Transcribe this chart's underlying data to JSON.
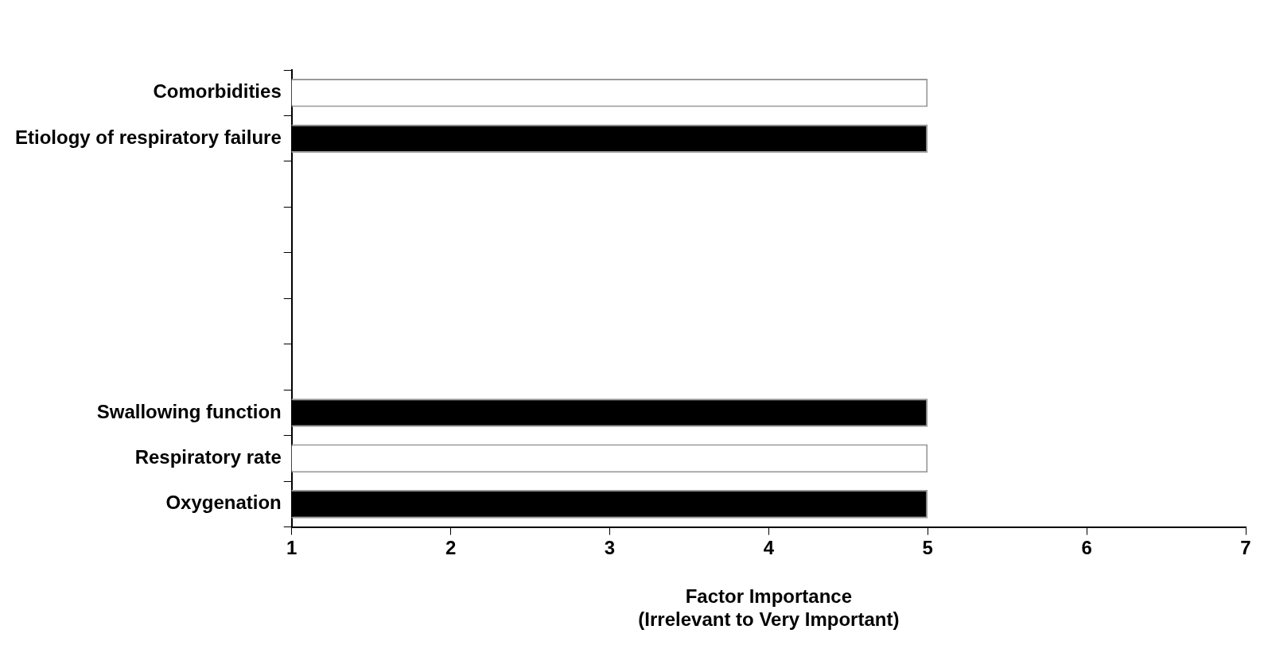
{
  "chart_data": {
    "type": "bar",
    "orientation": "horizontal",
    "xlabel": "Factor Importance\n(Irrelevant to Very Important)",
    "categories": [
      "Comorbidities",
      "Etiology of respiratory failure",
      null,
      null,
      null,
      null,
      null,
      "Swallowing function",
      "Respiratory rate",
      "Oxygenation"
    ],
    "values": [
      5,
      5,
      null,
      null,
      null,
      null,
      null,
      5,
      5,
      5
    ],
    "colors": [
      "#ffffff",
      "#000000",
      null,
      null,
      null,
      null,
      null,
      "#000000",
      "#ffffff",
      "#000000"
    ],
    "xlim": [
      1,
      7
    ],
    "xticks": [
      1,
      2,
      3,
      4,
      5,
      6,
      7
    ],
    "grid": false,
    "legend": false
  }
}
